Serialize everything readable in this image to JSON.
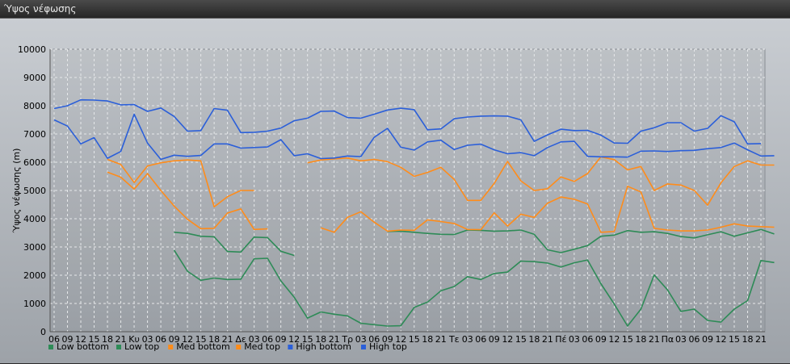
{
  "window": {
    "title": "Ύψος νέφωσης"
  },
  "chart_data": {
    "type": "line",
    "title": "",
    "ylabel": "Ύψος νέφωσης (m)",
    "xlabel": "",
    "ylim": [
      0,
      10000
    ],
    "yticks": [
      0,
      1000,
      2000,
      3000,
      4000,
      5000,
      6000,
      7000,
      8000,
      9000,
      10000
    ],
    "grid": true,
    "legend_position": "bottom-left",
    "x_tick_labels": [
      "06",
      "09",
      "12",
      "15",
      "18",
      "21",
      "Κυ",
      "03",
      "06",
      "09",
      "12",
      "15",
      "18",
      "21",
      "Δε",
      "03",
      "06",
      "09",
      "12",
      "15",
      "18",
      "21",
      "Τρ",
      "03",
      "06",
      "09",
      "12",
      "15",
      "18",
      "21",
      "Τε",
      "03",
      "06",
      "09",
      "12",
      "15",
      "18",
      "21",
      "Πέ",
      "03",
      "06",
      "09",
      "12",
      "15",
      "18",
      "21",
      "Πα",
      "03",
      "06",
      "09",
      "12",
      "15",
      "18",
      "21"
    ],
    "series": [
      {
        "name": "Low bottom",
        "color": "#2e8b57",
        "values": [
          null,
          null,
          null,
          null,
          null,
          null,
          null,
          null,
          null,
          3520,
          3480,
          3380,
          3360,
          2840,
          2820,
          3350,
          3330,
          2850,
          2700,
          null,
          null,
          null,
          null,
          null,
          null,
          3550,
          3560,
          3520,
          3480,
          3450,
          3440,
          3600,
          3590,
          3560,
          3570,
          3600,
          3450,
          2900,
          2800,
          2920,
          3050,
          3380,
          3420,
          3580,
          3520,
          3540,
          3480,
          3370,
          3320,
          3430,
          3540,
          3380,
          3500,
          3620,
          3460
        ]
      },
      {
        "name": "Low top",
        "color": "#2e8b57",
        "values": [
          null,
          null,
          null,
          null,
          null,
          null,
          null,
          null,
          null,
          2890,
          2140,
          1820,
          1900,
          1850,
          1860,
          2580,
          2600,
          1800,
          1220,
          480,
          700,
          620,
          560,
          300,
          250,
          200,
          210,
          860,
          1050,
          1450,
          1600,
          1950,
          1850,
          2060,
          2110,
          2500,
          2480,
          2430,
          2290,
          2440,
          2540,
          1700,
          980,
          200,
          800,
          2010,
          1480,
          720,
          800,
          400,
          340,
          800,
          1100,
          2520,
          2450
        ]
      },
      {
        "name": "Med bottom",
        "color": "#ff8c1a",
        "values": [
          null,
          null,
          null,
          null,
          5650,
          5470,
          5050,
          5600,
          5000,
          4450,
          3980,
          3650,
          3660,
          4200,
          4350,
          3620,
          3640,
          null,
          null,
          null,
          3680,
          3520,
          4050,
          4250,
          3880,
          3560,
          3600,
          3590,
          3960,
          3900,
          3830,
          3620,
          3610,
          4210,
          3740,
          4160,
          4050,
          4550,
          4770,
          4690,
          4520,
          3520,
          3550,
          5150,
          4950,
          3660,
          3600,
          3570,
          3570,
          3600,
          3700,
          3820,
          3740,
          3720,
          3700
        ]
      },
      {
        "name": "Med top",
        "color": "#ff8c1a",
        "values": [
          null,
          null,
          null,
          null,
          6100,
          5920,
          5280,
          5870,
          5980,
          6050,
          6080,
          6050,
          4420,
          4780,
          5000,
          5000,
          null,
          null,
          null,
          5980,
          6080,
          6120,
          6150,
          6050,
          6100,
          6020,
          5820,
          5500,
          5640,
          5820,
          5390,
          4650,
          4650,
          5250,
          6030,
          5340,
          5000,
          5060,
          5480,
          5320,
          5600,
          6190,
          6090,
          5730,
          5850,
          5000,
          5230,
          5190,
          5000,
          4480,
          5270,
          5850,
          6050,
          5900,
          5900
        ]
      },
      {
        "name": "High bottom",
        "color": "#2b5fd9",
        "values": [
          7500,
          7280,
          6650,
          6870,
          6140,
          6380,
          7700,
          6680,
          6100,
          6250,
          6210,
          6240,
          6650,
          6650,
          6500,
          6520,
          6540,
          6800,
          6230,
          6300,
          6130,
          6150,
          6220,
          6200,
          6880,
          7200,
          6530,
          6430,
          6720,
          6780,
          6450,
          6600,
          6640,
          6440,
          6300,
          6340,
          6230,
          6520,
          6720,
          6740,
          6210,
          6190,
          6190,
          6180,
          6390,
          6400,
          6380,
          6410,
          6420,
          6480,
          6520,
          6680,
          6440,
          6220,
          6230
        ]
      },
      {
        "name": "High top",
        "color": "#2b5fd9",
        "values": [
          7900,
          8000,
          8210,
          8200,
          8170,
          8030,
          8040,
          7800,
          7920,
          7620,
          7100,
          7120,
          7900,
          7840,
          7050,
          7060,
          7100,
          7210,
          7470,
          7560,
          7800,
          7810,
          7580,
          7560,
          7700,
          7850,
          7910,
          7860,
          7150,
          7180,
          7540,
          7600,
          7630,
          7640,
          7630,
          7500,
          6740,
          6970,
          7170,
          7120,
          7130,
          6960,
          6680,
          6670,
          7100,
          7220,
          7400,
          7400,
          7100,
          7200,
          7650,
          7430,
          6650,
          6660,
          null
        ]
      }
    ]
  }
}
